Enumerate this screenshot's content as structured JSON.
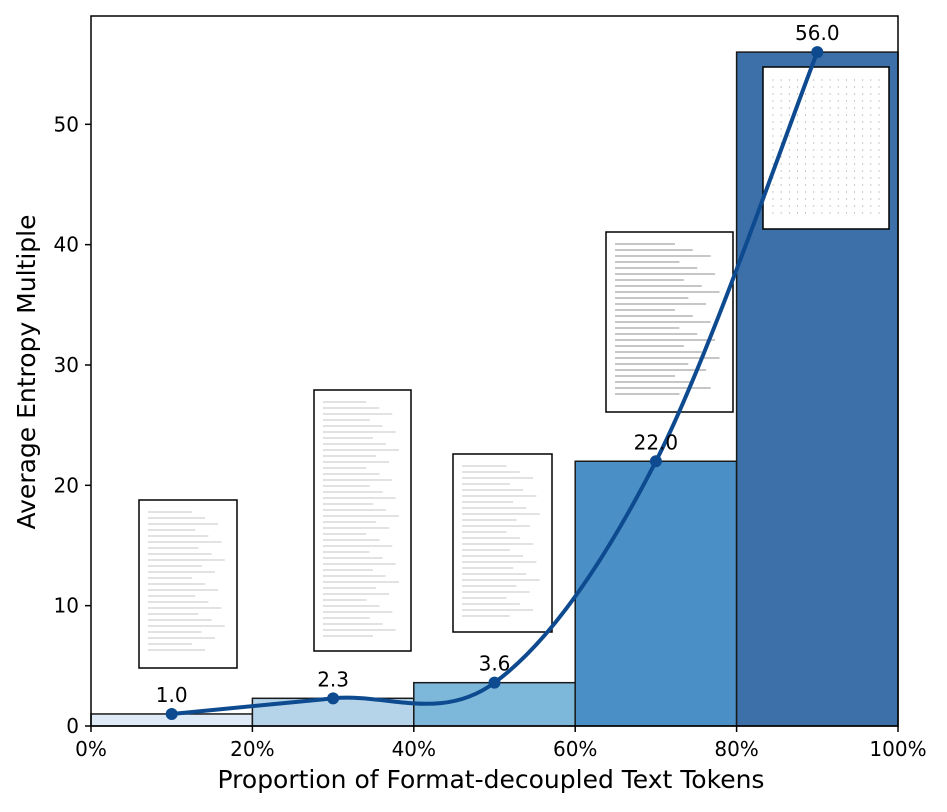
{
  "chart_data": {
    "type": "bar",
    "title": "",
    "xlabel": "Proportion of Format-decoupled Text Tokens",
    "ylabel": "Average Entropy Multiple",
    "x_ticks": [
      "0%",
      "20%",
      "40%",
      "60%",
      "80%",
      "100%"
    ],
    "y_ticks": [
      "0",
      "10",
      "20",
      "30",
      "40",
      "50"
    ],
    "xlim": [
      0,
      100
    ],
    "ylim": [
      0,
      59
    ],
    "bins": [
      [
        0,
        20
      ],
      [
        20,
        40
      ],
      [
        40,
        60
      ],
      [
        60,
        80
      ],
      [
        80,
        100
      ]
    ],
    "values": [
      1.0,
      2.3,
      3.6,
      22.0,
      56.0
    ],
    "data_labels": [
      "1.0",
      "2.3",
      "3.6",
      "22.0",
      "56.0"
    ],
    "line_points": {
      "x": [
        10,
        30,
        50,
        70,
        90
      ],
      "y": [
        1.0,
        2.3,
        3.6,
        22.0,
        56.0
      ]
    },
    "bar_colors": [
      "#deebf7",
      "#b5d4e9",
      "#7db8db",
      "#4a90c6",
      "#3d6fa8"
    ],
    "line_color": "#0d4a8f",
    "grid": false,
    "legend": "none",
    "thumbnails": [
      "document-page-thumbnail",
      "exam-paper-thumbnail",
      "math-paper-thumbnail",
      "handwritten-notes-thumbnail",
      "table-page-thumbnail"
    ]
  }
}
